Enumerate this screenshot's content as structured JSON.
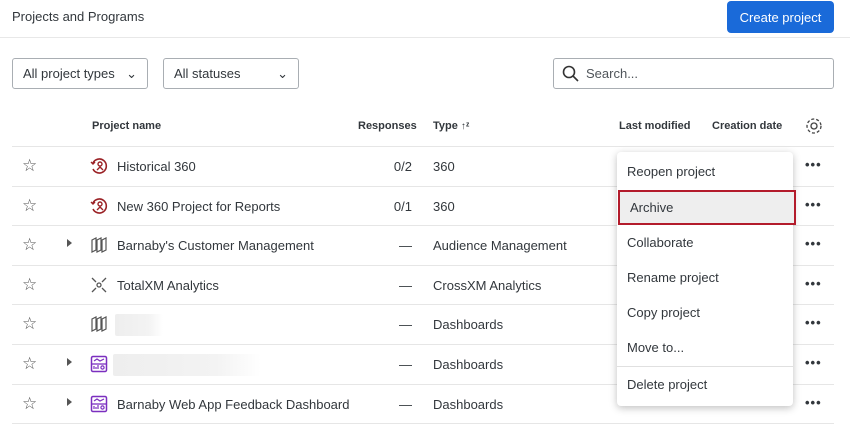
{
  "header": {
    "title": "Projects and Programs",
    "create_label": "Create project"
  },
  "filters": {
    "type": "All project types",
    "status": "All statuses",
    "search_placeholder": "Search..."
  },
  "columns": {
    "name": "Project name",
    "responses": "Responses",
    "type": "Type",
    "last_modified": "Last modified",
    "creation_date": "Creation date"
  },
  "rows": [
    {
      "name": "Historical 360",
      "responses": "0/2",
      "type": "360",
      "icon": "360-icon"
    },
    {
      "name": "New 360 Project for Reports",
      "responses": "0/1",
      "type": "360",
      "icon": "360-icon"
    },
    {
      "name": "Barnaby's Customer Management",
      "responses": "—",
      "type": "Audience Management",
      "icon": "audience-icon"
    },
    {
      "name": "TotalXM Analytics",
      "responses": "—",
      "type": "CrossXM Analytics",
      "icon": "crossxm-icon"
    },
    {
      "name": "",
      "responses": "—",
      "type": "Dashboards",
      "icon": "audience-icon"
    },
    {
      "name": "",
      "responses": "—",
      "type": "Dashboards",
      "icon": "dashboard-icon"
    },
    {
      "name": "Barnaby Web App Feedback Dashboard",
      "responses": "—",
      "type": "Dashboards",
      "icon": "dashboard-icon"
    }
  ],
  "menu": [
    "Reopen project",
    "Archive",
    "Collaborate",
    "Rename project",
    "Copy project",
    "Move to...",
    "Delete project"
  ],
  "colors": {
    "accent": "#1a6ad9",
    "highlight_border": "#b31b2b",
    "icon_360": "#9b2226",
    "icon_dashboard": "#7b2fbf"
  }
}
